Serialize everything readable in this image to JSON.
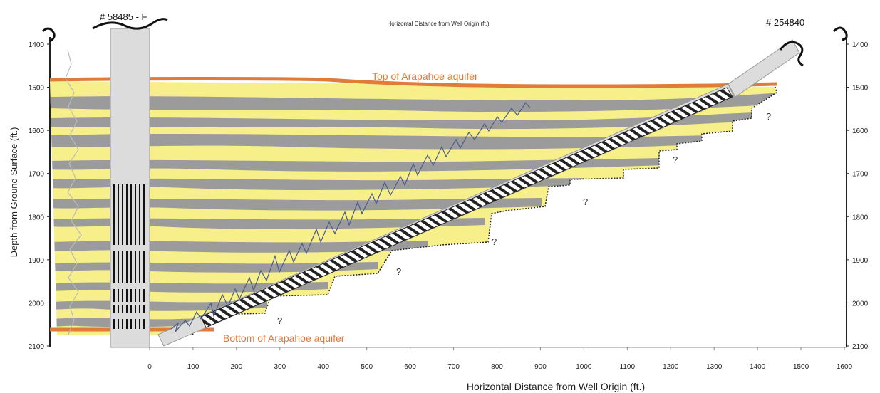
{
  "wells": {
    "left_id": "# 58485 - F",
    "right_id": "# 254840"
  },
  "labels": {
    "top_axis_title": "Horizontal Distance from Well Origin (ft.)",
    "bottom_axis_title": "Horizontal Distance from Well Origin (ft.)",
    "y_axis_title": "Depth from Ground Surface (ft.)",
    "top_aquifer": "Top of Arapahoe aquifer",
    "bottom_aquifer": "Bottom of Arapahoe aquifer",
    "question_mark": "?"
  },
  "axes": {
    "depth_ticks": [
      "1400",
      "1500",
      "1600",
      "1700",
      "1800",
      "1900",
      "2000",
      "2100"
    ],
    "distance_ticks": [
      "0",
      "100",
      "200",
      "300",
      "400",
      "500",
      "600",
      "700",
      "800",
      "900",
      "1000",
      "1100",
      "1200",
      "1300",
      "1400",
      "1500",
      "1600"
    ]
  },
  "colors": {
    "sand": "#f7ef8a",
    "shale": "#9b9b9b",
    "aquifer_boundary": "#e07b39",
    "casing": "#dcdcdc"
  }
}
